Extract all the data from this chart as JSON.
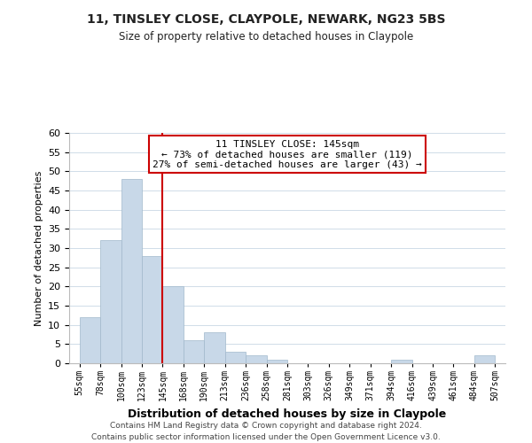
{
  "title": "11, TINSLEY CLOSE, CLAYPOLE, NEWARK, NG23 5BS",
  "subtitle": "Size of property relative to detached houses in Claypole",
  "xlabel": "Distribution of detached houses by size in Claypole",
  "ylabel": "Number of detached properties",
  "bin_labels": [
    "55sqm",
    "78sqm",
    "100sqm",
    "123sqm",
    "145sqm",
    "168sqm",
    "190sqm",
    "213sqm",
    "236sqm",
    "258sqm",
    "281sqm",
    "303sqm",
    "326sqm",
    "349sqm",
    "371sqm",
    "394sqm",
    "416sqm",
    "439sqm",
    "461sqm",
    "484sqm",
    "507sqm"
  ],
  "bar_values": [
    12,
    32,
    48,
    28,
    20,
    6,
    8,
    3,
    2,
    1,
    0,
    0,
    0,
    0,
    0,
    1,
    0,
    0,
    0,
    2,
    0
  ],
  "bar_color": "#c8d8e8",
  "bar_edge_color": "#a0b8cc",
  "vline_x_index": 4,
  "vline_color": "#cc0000",
  "ylim": [
    0,
    60
  ],
  "yticks": [
    0,
    5,
    10,
    15,
    20,
    25,
    30,
    35,
    40,
    45,
    50,
    55,
    60
  ],
  "annotation_box_text_line1": "11 TINSLEY CLOSE: 145sqm",
  "annotation_box_text_line2": "← 73% of detached houses are smaller (119)",
  "annotation_box_text_line3": "27% of semi-detached houses are larger (43) →",
  "footer_line1": "Contains HM Land Registry data © Crown copyright and database right 2024.",
  "footer_line2": "Contains public sector information licensed under the Open Government Licence v3.0.",
  "background_color": "#ffffff",
  "grid_color": "#d0dce8"
}
